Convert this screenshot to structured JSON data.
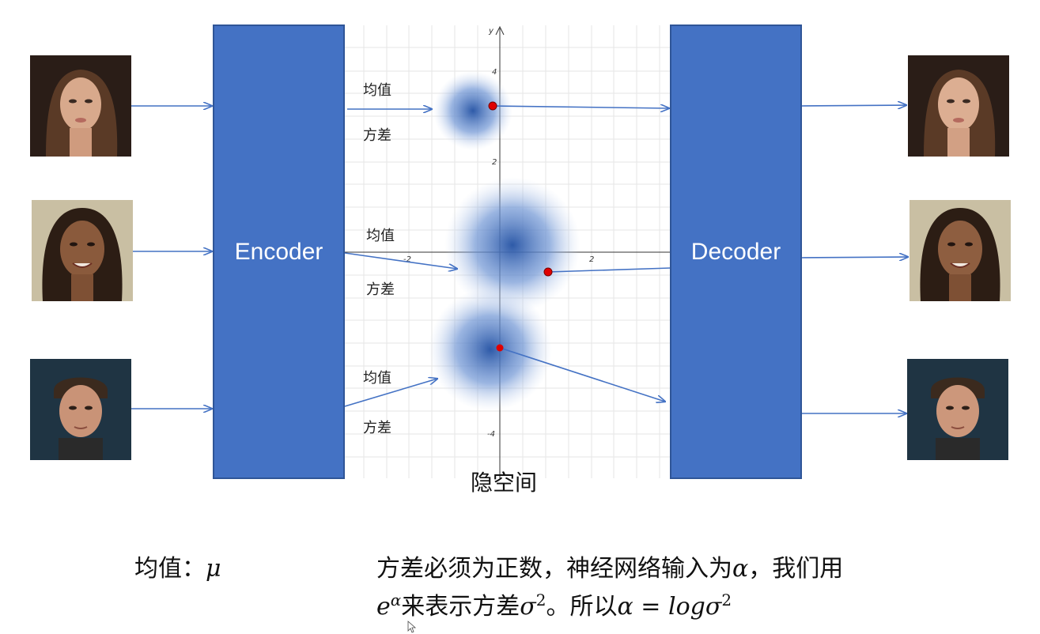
{
  "encoder_label": "Encoder",
  "decoder_label": "Decoder",
  "latent_space_label": "隐空间",
  "branches": [
    {
      "mean_label": "均值",
      "variance_label": "方差"
    },
    {
      "mean_label": "均值",
      "variance_label": "方差"
    },
    {
      "mean_label": "均值",
      "variance_label": "方差"
    }
  ],
  "axis": {
    "y_label": "y",
    "ticks": {
      "y4": "4",
      "y2": "2",
      "yneg4": "-4",
      "xneg2": "-2",
      "x2": "2"
    }
  },
  "formula": {
    "mean_text": "均值：",
    "mean_symbol": "μ",
    "variance_line1_text": "方差必须为正数，神经网络输入为",
    "alpha": "α",
    "comma": "，我们用",
    "e": "e",
    "variance_line2_text": "来表示方差",
    "sigma": "σ",
    "sq": "2",
    "so_text": "。所以",
    "equals_log": " = log"
  },
  "colors": {
    "block": "#4472c4",
    "arrow": "#4472c4",
    "point": "#e00000"
  },
  "faces": {
    "input": [
      "face-woman-1",
      "face-woman-2",
      "face-man-1"
    ],
    "output": [
      "face-woman-1",
      "face-woman-2",
      "face-man-1"
    ]
  }
}
